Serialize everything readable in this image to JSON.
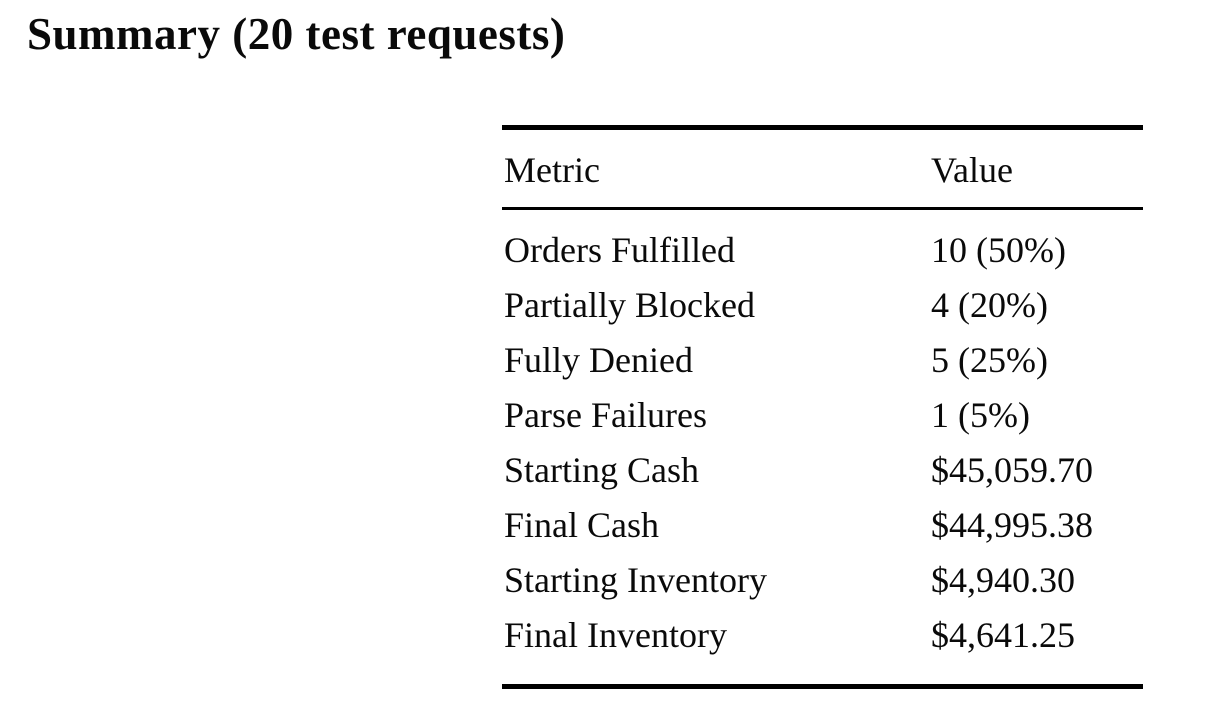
{
  "page": {
    "title": "Summary (20 test requests)"
  },
  "colors": {
    "text": "#0a0a0a",
    "rule": "#000000",
    "background": "#ffffff"
  },
  "summary_table": {
    "columns": {
      "metric": "Metric",
      "value": "Value"
    },
    "rows": [
      {
        "metric": "Orders Fulfilled",
        "value": "10 (50%)"
      },
      {
        "metric": "Partially Blocked",
        "value": "4 (20%)"
      },
      {
        "metric": "Fully Denied",
        "value": "5 (25%)"
      },
      {
        "metric": "Parse Failures",
        "value": "1 (5%)"
      },
      {
        "metric": "Starting Cash",
        "value": "$45,059.70"
      },
      {
        "metric": "Final Cash",
        "value": "$44,995.38"
      },
      {
        "metric": "Starting Inventory",
        "value": "$4,940.30"
      },
      {
        "metric": "Final Inventory",
        "value": "$4,641.25"
      }
    ]
  }
}
